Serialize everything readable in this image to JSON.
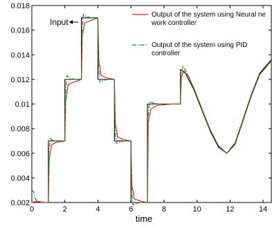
{
  "chart_data": {
    "type": "line",
    "title": "",
    "xlabel": "time",
    "ylabel": "",
    "xlim": [
      0,
      14.5
    ],
    "ylim": [
      0.002,
      0.018
    ],
    "x_ticks": [
      0,
      2,
      4,
      6,
      8,
      10,
      12,
      14
    ],
    "y_ticks": [
      0.002,
      0.004,
      0.006,
      0.008,
      0.01,
      0.012,
      0.014,
      0.016,
      0.018
    ],
    "x_tick_labels": [
      "0",
      "2",
      "4",
      "6",
      "8",
      "10",
      "12",
      "14"
    ],
    "y_tick_labels": [
      "0.002",
      "0.004",
      "0.006",
      "0.008",
      "0.01",
      "0.012",
      "0.014",
      "0.016",
      "0.018"
    ],
    "grid": false,
    "legend_position": "top-right",
    "annotation": {
      "text": "Input",
      "arrow_to": [
        2.5,
        0.0168
      ]
    },
    "series": [
      {
        "name": "Input",
        "color": "#000000",
        "style": "solid",
        "x": [
          0,
          1.0,
          1.0,
          2.0,
          2.0,
          3.0,
          3.0,
          4.0,
          4.0,
          5.0,
          5.0,
          6.0,
          6.0,
          7.0,
          7.0,
          9.0,
          9.0,
          9.3,
          9.8,
          10.3,
          10.8,
          11.3,
          11.8,
          12.3,
          12.8,
          13.3,
          13.8,
          14.5
        ],
        "y": [
          0.002,
          0.002,
          0.007,
          0.007,
          0.012,
          0.012,
          0.017,
          0.017,
          0.012,
          0.012,
          0.007,
          0.007,
          0.002,
          0.002,
          0.01,
          0.01,
          0.0128,
          0.0125,
          0.0112,
          0.0095,
          0.0078,
          0.0065,
          0.006,
          0.0068,
          0.0088,
          0.0108,
          0.0125,
          0.0136
        ]
      },
      {
        "name": "Output of the system using Neural network controller",
        "color": "#e02020",
        "style": "solid",
        "x": [
          0,
          0.3,
          0.8,
          1.0,
          1.05,
          1.2,
          1.5,
          2.0,
          2.05,
          2.2,
          2.6,
          3.0,
          3.05,
          3.2,
          3.6,
          4.0,
          4.05,
          4.2,
          4.6,
          5.0,
          5.05,
          5.2,
          5.6,
          6.0,
          6.05,
          6.2,
          6.6,
          7.0,
          7.05,
          7.2,
          7.6,
          8.5,
          9.0,
          9.05,
          9.2,
          9.5,
          9.8,
          10.3,
          10.8,
          11.3,
          11.8,
          12.3,
          12.8,
          13.3,
          13.8,
          14.5
        ],
        "y": [
          0.002,
          0.0021,
          0.002,
          0.002,
          0.0055,
          0.0067,
          0.0069,
          0.007,
          0.0103,
          0.0116,
          0.0118,
          0.012,
          0.0155,
          0.0166,
          0.0168,
          0.017,
          0.0136,
          0.0123,
          0.0121,
          0.012,
          0.0085,
          0.0073,
          0.0071,
          0.007,
          0.0035,
          0.0023,
          0.0021,
          0.002,
          0.0085,
          0.0096,
          0.0099,
          0.01,
          0.01,
          0.0122,
          0.0127,
          0.0122,
          0.0113,
          0.0096,
          0.0079,
          0.0066,
          0.006,
          0.0067,
          0.0087,
          0.0107,
          0.0124,
          0.0135
        ]
      },
      {
        "name": "Output of the system using PID controller",
        "color": "#0a8a2a",
        "style": "dashdot",
        "x": [
          0,
          0.1,
          0.25,
          0.6,
          1.0,
          1.03,
          1.12,
          1.3,
          1.6,
          2.0,
          2.03,
          2.12,
          2.3,
          2.6,
          3.0,
          3.03,
          3.12,
          3.3,
          3.6,
          4.0,
          4.03,
          4.12,
          4.3,
          4.6,
          5.0,
          5.03,
          5.12,
          5.3,
          5.6,
          6.0,
          6.03,
          6.12,
          6.3,
          6.6,
          7.0,
          7.03,
          7.12,
          7.3,
          7.6,
          8.5,
          9.0,
          9.03,
          9.15,
          9.4,
          9.8,
          10.3,
          10.8,
          11.3,
          11.8,
          12.3,
          12.8,
          13.3,
          13.8,
          14.5
        ],
        "y": [
          0.003,
          0.0029,
          0.0022,
          0.002,
          0.002,
          0.006,
          0.0072,
          0.007,
          0.007,
          0.007,
          0.0108,
          0.0123,
          0.0121,
          0.012,
          0.012,
          0.0158,
          0.0173,
          0.0171,
          0.017,
          0.017,
          0.0132,
          0.0118,
          0.0119,
          0.012,
          0.012,
          0.0082,
          0.0068,
          0.0069,
          0.007,
          0.007,
          0.0032,
          0.0018,
          0.0019,
          0.002,
          0.002,
          0.0088,
          0.0102,
          0.0101,
          0.01,
          0.01,
          0.01,
          0.0124,
          0.0131,
          0.0125,
          0.0113,
          0.0096,
          0.0079,
          0.0066,
          0.006,
          0.0067,
          0.0087,
          0.0107,
          0.0124,
          0.0135
        ]
      }
    ],
    "legend": [
      {
        "series_index": 1,
        "lines": [
          "Output of the system using Neural ne",
          "work controller"
        ]
      },
      {
        "series_index": 2,
        "lines": [
          "Output of the system using PID",
          "controller"
        ]
      }
    ]
  }
}
